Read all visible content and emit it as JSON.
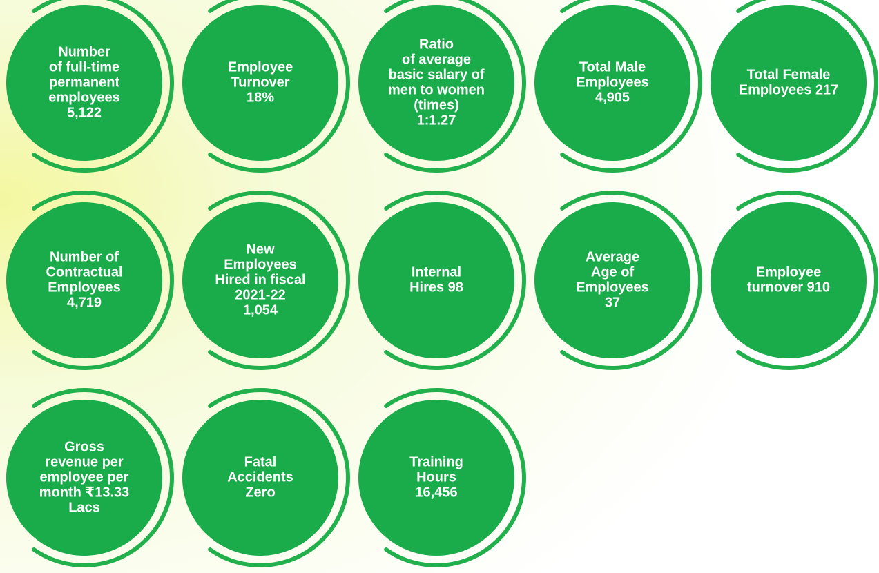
{
  "items": [
    {
      "lines": [
        "Number",
        "of full-time",
        "permanent",
        "employees",
        "5,122"
      ]
    },
    {
      "lines": [
        "Employee",
        "Turnover",
        "18%"
      ]
    },
    {
      "lines": [
        "Ratio",
        "of average",
        "basic salary of",
        "men to women",
        "(times)",
        "1:1.27"
      ]
    },
    {
      "lines": [
        "Total Male",
        "Employees",
        "4,905"
      ]
    },
    {
      "lines": [
        "Total Female",
        "Employees 217"
      ]
    },
    {
      "lines": [
        "Number of",
        "Contractual",
        "Employees",
        "4,719"
      ]
    },
    {
      "lines": [
        "New",
        "Employees",
        "Hired in fiscal",
        "2021-22",
        "1,054"
      ]
    },
    {
      "lines": [
        "Internal",
        "Hires 98"
      ]
    },
    {
      "lines": [
        "Average",
        "Age of",
        "Employees",
        "37"
      ]
    },
    {
      "lines": [
        "Employee",
        "turnover 910"
      ]
    },
    {
      "lines": [
        "Gross",
        "revenue per",
        "employee per",
        "month ₹13.33",
        "Lacs"
      ]
    },
    {
      "lines": [
        "Fatal",
        "Accidents",
        "Zero"
      ]
    },
    {
      "lines": [
        "Training",
        "Hours",
        "16,456"
      ]
    }
  ]
}
